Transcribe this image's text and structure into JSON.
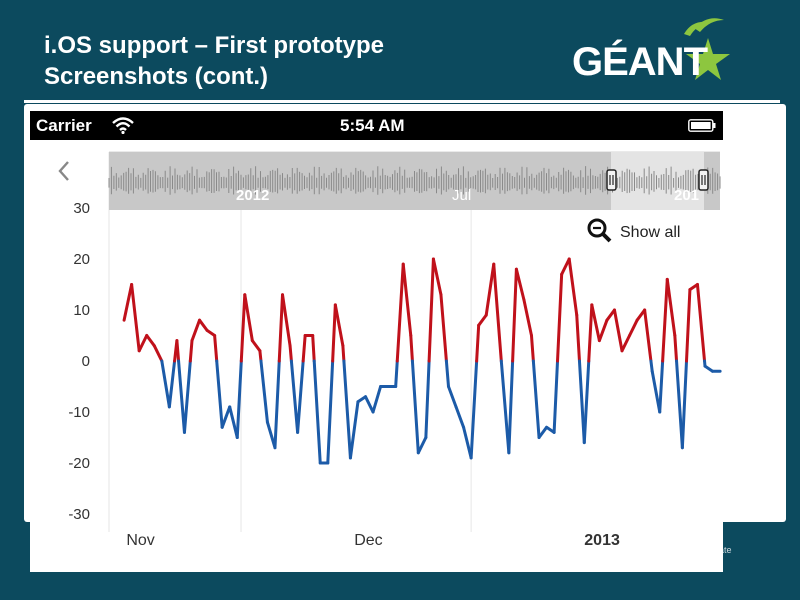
{
  "slide": {
    "title_line1": "i.OS support – First prototype",
    "title_line2": "Screenshots (cont.)",
    "logo_text": "GÉANT",
    "footer_fragment": "rate"
  },
  "statusbar": {
    "carrier": "Carrier",
    "time": "5:54 AM",
    "icons": [
      "wifi-icon",
      "battery-icon"
    ]
  },
  "nav": {
    "back_icon": "chevron-left-icon"
  },
  "navigator": {
    "labels": [
      "2012",
      "Jul",
      "201"
    ],
    "fill_color": "#c8c8c8",
    "selected_color": "#e4e4e4"
  },
  "show_all": {
    "label": "Show all",
    "icon": "zoom-out-icon"
  },
  "colors": {
    "positive": "#c0111b",
    "negative": "#1c5ba8",
    "grid": "#e6e6e6",
    "header_bg": "#0c4a5e"
  },
  "chart_data": {
    "type": "line",
    "title": "",
    "xlabel": "",
    "ylabel": "",
    "ylim": [
      -30,
      30
    ],
    "yticks": [
      30,
      20,
      10,
      0,
      -10,
      -20,
      -30
    ],
    "xticks": [
      {
        "label": "Nov",
        "x": 0.3
      },
      {
        "label": "Dec",
        "x": 30.5
      },
      {
        "label": "2013",
        "x": 61
      }
    ],
    "x_range": [
      -2,
      77
    ],
    "grid": "vertical lines at month boundaries",
    "color_rule": "values above 0 drawn red, below 0 drawn blue",
    "values": [
      8,
      15,
      2,
      5,
      3,
      0,
      -9,
      4,
      -14,
      4,
      8,
      6,
      5,
      -13,
      -9,
      -15,
      13,
      4,
      2,
      -12,
      -17,
      13,
      3,
      -14,
      5,
      5,
      -20,
      -20,
      11,
      3,
      -19,
      -8,
      -7,
      -10,
      -5,
      -5,
      -5,
      19,
      5,
      -18,
      -15,
      20,
      13,
      -5,
      -9,
      -13,
      -19,
      7,
      9,
      19,
      0,
      -18,
      18,
      12,
      5,
      -15,
      -13,
      -14,
      17,
      20,
      9,
      -16,
      11,
      4,
      8,
      10,
      2,
      5,
      8,
      10,
      -2,
      -10,
      16,
      5,
      -17,
      14,
      15,
      -1,
      -2,
      -2
    ]
  }
}
